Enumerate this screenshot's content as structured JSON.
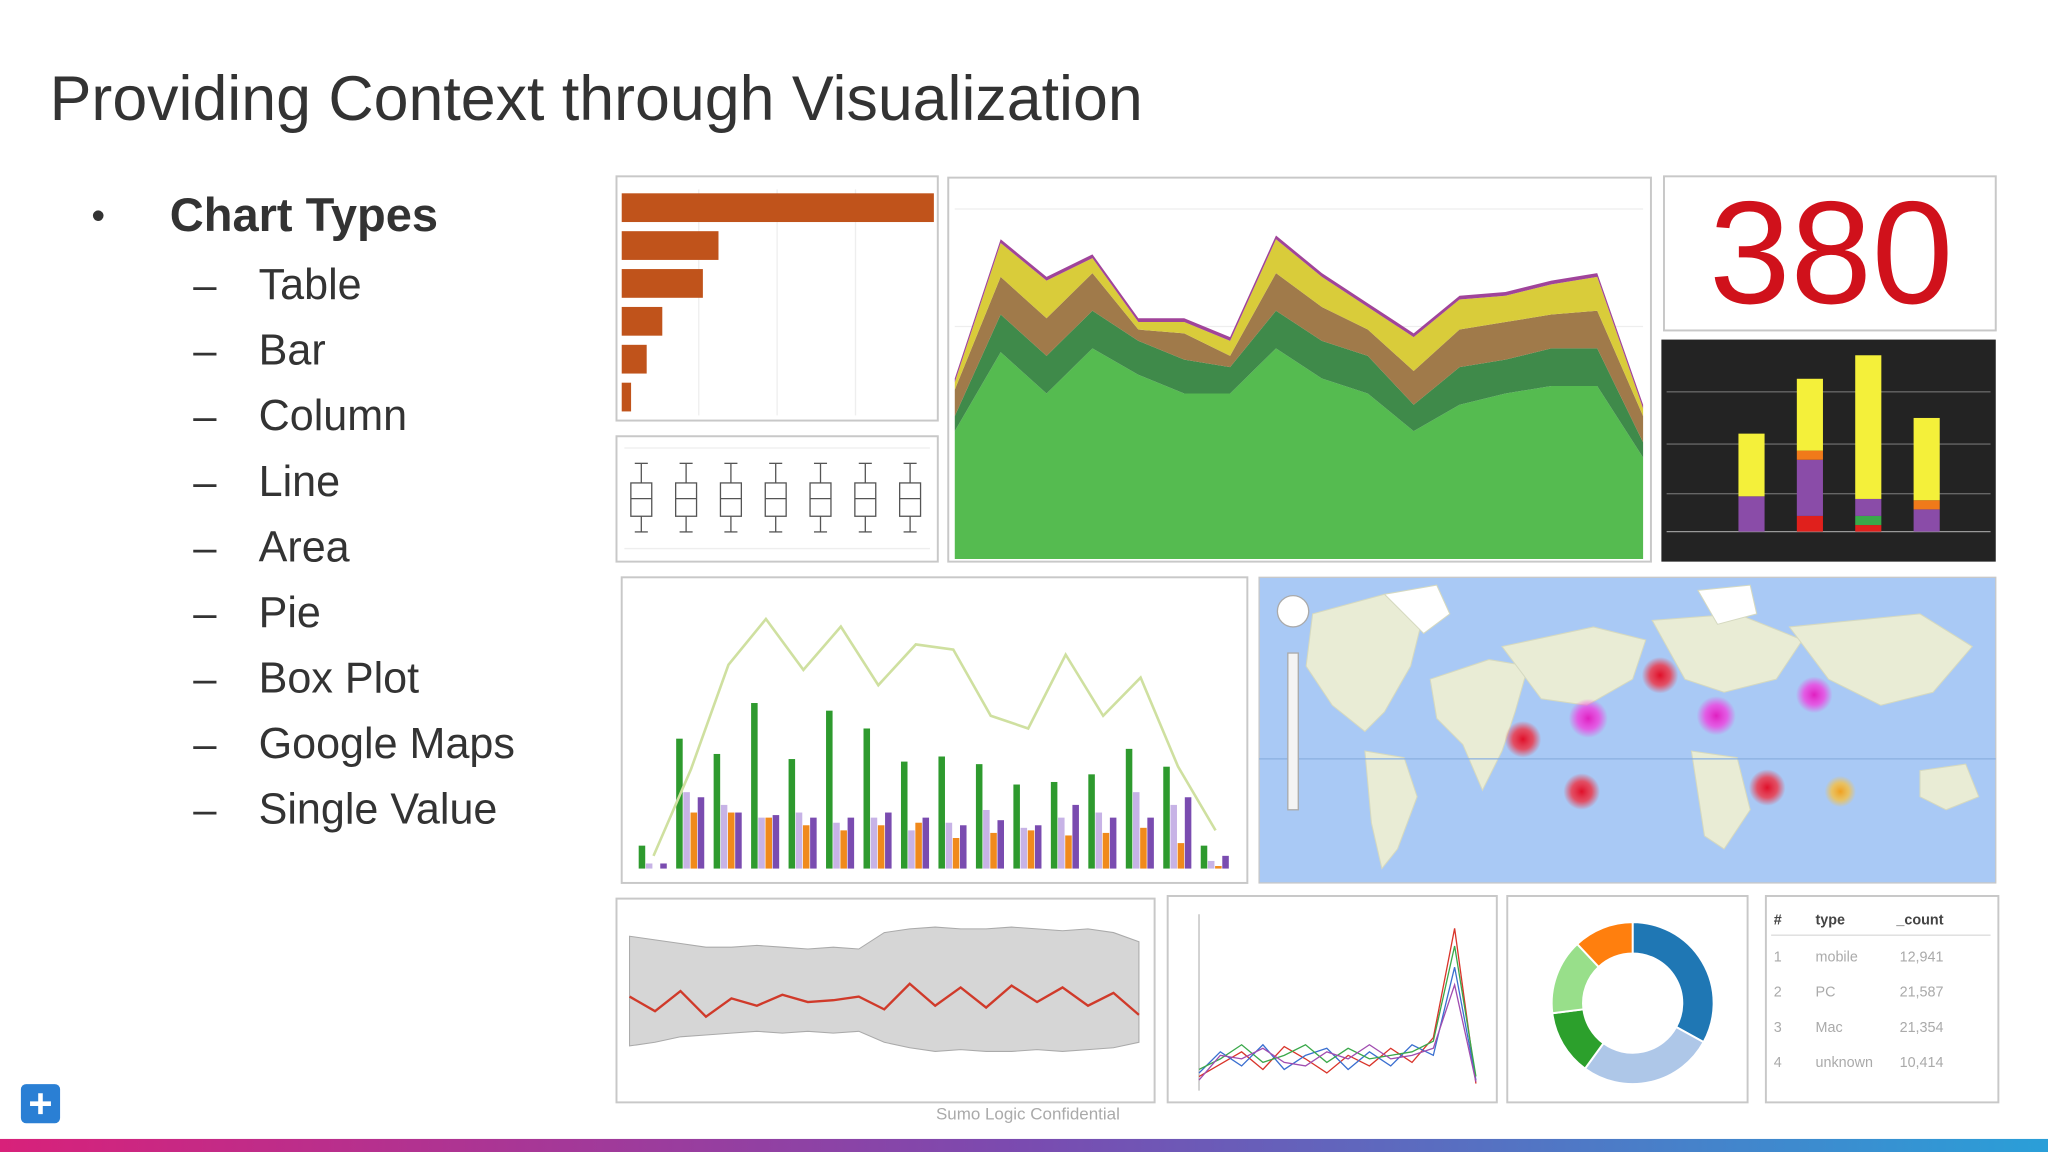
{
  "title": "Providing Context through Visualization",
  "bullets": {
    "heading": "Chart Types",
    "items": [
      "Table",
      "Bar",
      "Column",
      "Line",
      "Area",
      "Pie",
      "Box Plot",
      "Google Maps",
      "Single Value"
    ]
  },
  "footer": "Sumo Logic Confidential",
  "charts": {
    "hbar": {
      "type": "bar",
      "color": "#c0531b",
      "xlim": [
        0,
        100
      ],
      "values": [
        100,
        31,
        26,
        13,
        8,
        3
      ]
    },
    "boxplot": {
      "type": "box",
      "ylim": [
        0,
        100
      ],
      "boxes": [
        [
          17,
          33,
          51,
          67,
          87
        ],
        [
          17,
          33,
          51,
          67,
          87
        ],
        [
          17,
          33,
          51,
          67,
          87
        ],
        [
          17,
          33,
          51,
          67,
          87
        ],
        [
          17,
          33,
          51,
          67,
          87
        ],
        [
          17,
          33,
          51,
          67,
          87
        ],
        [
          17,
          33,
          51,
          67,
          87
        ]
      ]
    },
    "area": {
      "type": "area",
      "ylim": [
        0,
        100
      ],
      "series": [
        {
          "color": "#55bb50",
          "values": [
            34,
            55,
            44,
            56,
            49,
            44,
            44,
            56,
            48,
            44,
            34,
            41,
            44,
            46,
            46,
            27
          ]
        },
        {
          "color": "#3f8a4a",
          "values": [
            4,
            10,
            10,
            10,
            9,
            9,
            7,
            10,
            10,
            10,
            7,
            10,
            9,
            10,
            10,
            4
          ]
        },
        {
          "color": "#a07a4a",
          "values": [
            7,
            10,
            10,
            10,
            3,
            7,
            3,
            10,
            9,
            7,
            9,
            10,
            10,
            9,
            10,
            7
          ]
        },
        {
          "color": "#d9cc3a",
          "values": [
            2,
            9,
            10,
            4,
            2,
            3,
            4,
            9,
            8,
            6,
            9,
            8,
            7,
            8,
            9,
            2
          ]
        },
        {
          "color": "#a0449a",
          "values": [
            1,
            1,
            1,
            1,
            1,
            1,
            1,
            1,
            1,
            1,
            1,
            1,
            1,
            1,
            1,
            1
          ]
        }
      ]
    },
    "single_value": {
      "type": "single-value",
      "value": 380,
      "color": "#d0111b"
    },
    "dark_columns": {
      "type": "stacked-column",
      "ylim": [
        0,
        150
      ],
      "series": [
        {
          "color": "#e0201c",
          "values": [
            0,
            12,
            5,
            0
          ]
        },
        {
          "color": "#3aa84a",
          "values": [
            0,
            0,
            7,
            0
          ]
        },
        {
          "color": "#8a4ca8",
          "values": [
            27,
            43,
            13,
            17
          ]
        },
        {
          "color": "#f07a1a",
          "values": [
            0,
            7,
            0,
            7
          ]
        },
        {
          "color": "#f4f03a",
          "values": [
            48,
            55,
            110,
            63
          ]
        }
      ]
    },
    "grouped": {
      "type": "bar",
      "ylim": [
        0,
        100
      ],
      "series": [
        {
          "color": "#2e9a2e",
          "values": [
            9,
            51,
            45,
            65,
            43,
            62,
            55,
            42,
            44,
            41,
            33,
            34,
            37,
            47,
            40,
            9
          ]
        },
        {
          "color": "#c7b3e6",
          "values": [
            2,
            30,
            25,
            20,
            22,
            18,
            20,
            15,
            18,
            23,
            16,
            20,
            22,
            30,
            25,
            3
          ]
        },
        {
          "color": "#f08a1c",
          "values": [
            0,
            22,
            22,
            20,
            17,
            15,
            17,
            18,
            12,
            14,
            15,
            13,
            14,
            16,
            10,
            1
          ]
        },
        {
          "color": "#7a4cb0",
          "values": [
            2,
            28,
            22,
            21,
            20,
            20,
            22,
            20,
            17,
            19,
            17,
            25,
            20,
            20,
            28,
            5
          ]
        }
      ],
      "line": {
        "color": "#cfe0a0",
        "values": [
          5,
          39,
          80,
          98,
          78,
          95,
          72,
          88,
          86,
          60,
          55,
          84,
          60,
          75,
          40,
          15
        ]
      }
    },
    "band": {
      "type": "line",
      "ylim": [
        0,
        100
      ],
      "band_color": "#d6d6d6",
      "line_color": "#d03a2a",
      "upper": [
        88,
        86,
        84,
        82,
        82,
        83,
        82,
        81,
        82,
        81,
        90,
        92,
        93,
        92,
        92,
        93,
        92,
        91,
        92,
        90,
        85
      ],
      "lower": [
        28,
        30,
        33,
        34,
        35,
        36,
        35,
        36,
        35,
        36,
        30,
        27,
        25,
        26,
        25,
        25,
        26,
        25,
        26,
        27,
        30
      ],
      "values": [
        55,
        47,
        58,
        44,
        54,
        50,
        56,
        52,
        53,
        55,
        48,
        62,
        50,
        60,
        49,
        61,
        52,
        60,
        50,
        57,
        45
      ]
    },
    "spaghetti": {
      "type": "line",
      "ylim": [
        0,
        100
      ],
      "series": [
        {
          "color": "#d9342a",
          "values": [
            8,
            15,
            22,
            12,
            25,
            18,
            10,
            20,
            14,
            24,
            16,
            30,
            92,
            4
          ]
        },
        {
          "color": "#3a6fd0",
          "values": [
            10,
            22,
            14,
            26,
            12,
            20,
            24,
            12,
            22,
            14,
            26,
            20,
            70,
            6
          ]
        },
        {
          "color": "#3aa84a",
          "values": [
            12,
            18,
            26,
            16,
            20,
            26,
            16,
            24,
            18,
            20,
            22,
            28,
            82,
            8
          ]
        },
        {
          "color": "#a04cb0",
          "values": [
            6,
            20,
            18,
            24,
            16,
            14,
            22,
            18,
            26,
            18,
            20,
            24,
            60,
            5
          ]
        }
      ]
    },
    "donut": {
      "type": "pie",
      "values": [
        33,
        27,
        13,
        15,
        12
      ],
      "colors": [
        "#1f77b4",
        "#aec7e8",
        "#2ca02c",
        "#98df8a",
        "#ff7f0e"
      ]
    }
  },
  "table": {
    "headers": [
      "#",
      "type",
      "_count"
    ],
    "rows": [
      [
        "1",
        "mobile",
        "12,941"
      ],
      [
        "2",
        "PC",
        "21,587"
      ],
      [
        "3",
        "Mac",
        "21,354"
      ],
      [
        "4",
        "unknown",
        "10,414"
      ]
    ]
  }
}
